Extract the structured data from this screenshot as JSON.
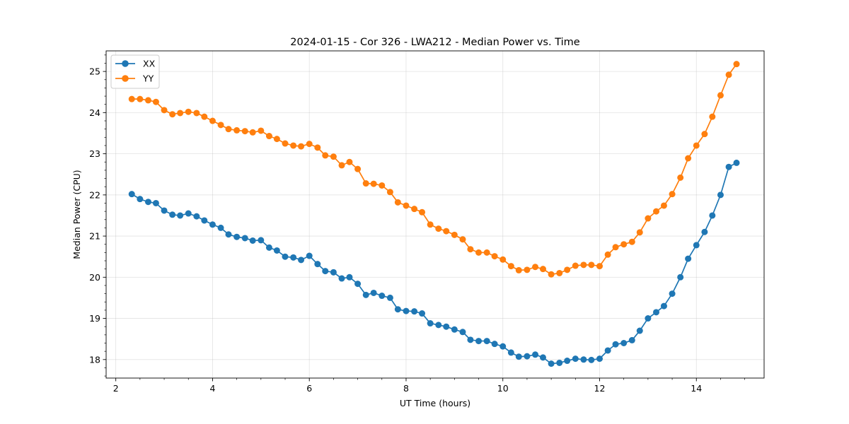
{
  "chart_data": {
    "type": "line",
    "title": "2024-01-15 - Cor 326 - LWA212 - Median Power vs. Time",
    "xlabel": "UT Time (hours)",
    "ylabel": "Median Power (CPU)",
    "xlim": [
      1.8,
      15.4
    ],
    "ylim": [
      17.55,
      25.5
    ],
    "xticks": [
      2,
      4,
      6,
      8,
      10,
      12,
      14
    ],
    "yticks": [
      18,
      19,
      20,
      21,
      22,
      23,
      24,
      25
    ],
    "grid": true,
    "legend_position": "top-left",
    "x": [
      2.33,
      2.5,
      2.67,
      2.83,
      3.0,
      3.17,
      3.33,
      3.5,
      3.67,
      3.83,
      4.0,
      4.17,
      4.33,
      4.5,
      4.67,
      4.83,
      5.0,
      5.17,
      5.33,
      5.5,
      5.67,
      5.83,
      6.0,
      6.17,
      6.33,
      6.5,
      6.67,
      6.83,
      7.0,
      7.17,
      7.33,
      7.5,
      7.67,
      7.83,
      8.0,
      8.17,
      8.33,
      8.5,
      8.67,
      8.83,
      9.0,
      9.17,
      9.33,
      9.5,
      9.67,
      9.83,
      10.0,
      10.17,
      10.33,
      10.5,
      10.67,
      10.83,
      11.0,
      11.17,
      11.33,
      11.5,
      11.67,
      11.83,
      12.0,
      12.17,
      12.33,
      12.5,
      12.67,
      12.83,
      13.0,
      13.17,
      13.33,
      13.5,
      13.67,
      13.83,
      14.0,
      14.17,
      14.33,
      14.5,
      14.67,
      14.83
    ],
    "series": [
      {
        "name": "XX",
        "color": "#1f77b4",
        "values": [
          22.02,
          21.9,
          21.83,
          21.8,
          21.62,
          21.52,
          21.5,
          21.55,
          21.48,
          21.38,
          21.28,
          21.2,
          21.04,
          20.98,
          20.95,
          20.89,
          20.9,
          20.72,
          20.65,
          20.5,
          20.48,
          20.42,
          20.52,
          20.32,
          20.15,
          20.12,
          19.97,
          20.0,
          19.84,
          19.57,
          19.62,
          19.55,
          19.5,
          19.22,
          19.18,
          19.17,
          19.12,
          18.88,
          18.84,
          18.8,
          18.73,
          18.67,
          18.48,
          18.45,
          18.45,
          18.38,
          18.32,
          18.17,
          18.07,
          18.08,
          18.12,
          18.05,
          17.9,
          17.92,
          17.97,
          18.02,
          18.0,
          17.99,
          18.02,
          18.22,
          18.37,
          18.4,
          18.47,
          18.7,
          19.0,
          19.15,
          19.3,
          19.6,
          20.0,
          20.45,
          20.78,
          21.1,
          21.5,
          22.0,
          22.68,
          22.78
        ]
      },
      {
        "name": "YY",
        "color": "#ff7f0e",
        "values": [
          24.33,
          24.33,
          24.3,
          24.26,
          24.06,
          23.96,
          23.99,
          24.02,
          23.99,
          23.9,
          23.8,
          23.7,
          23.6,
          23.57,
          23.55,
          23.52,
          23.56,
          23.43,
          23.36,
          23.25,
          23.2,
          23.18,
          23.24,
          23.15,
          22.96,
          22.93,
          22.72,
          22.8,
          22.63,
          22.28,
          22.27,
          22.23,
          22.07,
          21.82,
          21.74,
          21.66,
          21.58,
          21.28,
          21.18,
          21.12,
          21.03,
          20.92,
          20.68,
          20.6,
          20.6,
          20.51,
          20.43,
          20.27,
          20.17,
          20.18,
          20.25,
          20.2,
          20.07,
          20.1,
          20.18,
          20.28,
          20.3,
          20.3,
          20.27,
          20.55,
          20.73,
          20.8,
          20.86,
          21.09,
          21.43,
          21.6,
          21.74,
          22.02,
          22.42,
          22.89,
          23.2,
          23.48,
          23.9,
          24.42,
          24.92,
          25.18
        ]
      }
    ]
  }
}
